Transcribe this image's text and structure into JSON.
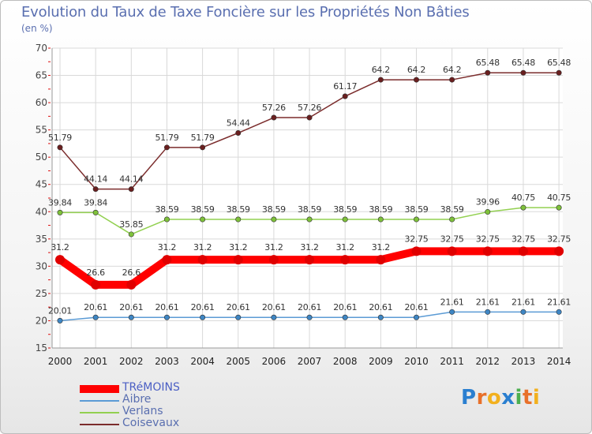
{
  "chart_data": {
    "type": "line",
    "title": "Evolution du Taux de Taxe Foncière sur les Propriétés Non Bâties",
    "subtitle": "(en %)",
    "xlabel": "",
    "ylabel": "",
    "ylim": [
      15,
      70
    ],
    "yticks": [
      15,
      20,
      25,
      30,
      35,
      40,
      45,
      50,
      55,
      60,
      65,
      70
    ],
    "grid": true,
    "legend_position": "bottom-left",
    "x": [
      "2000",
      "2001",
      "2002",
      "2003",
      "2004",
      "2005",
      "2006",
      "2007",
      "2008",
      "2009",
      "2010",
      "2011",
      "2012",
      "2013",
      "2014"
    ],
    "series": [
      {
        "name": "TRéMOINS",
        "color": "#ff0000",
        "dot_color": "#e00000",
        "emphasis": true,
        "values": [
          31.2,
          26.6,
          26.6,
          31.2,
          31.2,
          31.2,
          31.2,
          31.2,
          31.2,
          31.2,
          32.75,
          32.75,
          32.75,
          32.75,
          32.75
        ],
        "labels": [
          "31.2",
          "26.6",
          "26.6",
          "31.2",
          "31.2",
          "31.2",
          "31.2",
          "31.2",
          "31.2",
          "31.2",
          "32.75",
          "32.75",
          "32.75",
          "32.75",
          "32.75"
        ]
      },
      {
        "name": "Aibre",
        "color": "#5b9bd5",
        "dot_color": "#3e86c4",
        "emphasis": false,
        "values": [
          20.01,
          20.61,
          20.61,
          20.61,
          20.61,
          20.61,
          20.61,
          20.61,
          20.61,
          20.61,
          20.61,
          21.61,
          21.61,
          21.61,
          21.61
        ],
        "labels": [
          "20.01",
          "20.61",
          "20.61",
          "20.61",
          "20.61",
          "20.61",
          "20.61",
          "20.61",
          "20.61",
          "20.61",
          "20.61",
          "21.61",
          "21.61",
          "21.61",
          "21.61"
        ]
      },
      {
        "name": "Verlans",
        "color": "#92d050",
        "dot_color": "#7ec13a",
        "emphasis": false,
        "values": [
          39.84,
          39.84,
          35.85,
          38.59,
          38.59,
          38.59,
          38.59,
          38.59,
          38.59,
          38.59,
          38.59,
          38.59,
          39.96,
          40.75,
          40.75
        ],
        "labels": [
          "39.84",
          "39.84",
          "35.85",
          "38.59",
          "38.59",
          "38.59",
          "38.59",
          "38.59",
          "38.59",
          "38.59",
          "38.59",
          "38.59",
          "39.96",
          "40.75",
          "40.75"
        ]
      },
      {
        "name": "Coisevaux",
        "color": "#7b2c2c",
        "dot_color": "#6a1f1f",
        "emphasis": false,
        "values": [
          51.79,
          44.14,
          44.14,
          51.79,
          51.79,
          54.44,
          57.26,
          57.26,
          61.17,
          64.2,
          64.2,
          64.2,
          65.48,
          65.48,
          65.48
        ],
        "labels": [
          "51.79",
          "44.14",
          "44.14",
          "51.79",
          "51.79",
          "54.44",
          "57.26",
          "57.26",
          "61.17",
          "64.2",
          "64.2",
          "64.2",
          "65.48",
          "65.48",
          "65.48"
        ]
      }
    ]
  },
  "logo": {
    "text": "Proxiti",
    "letter_colors": [
      "#2a7fd0",
      "#e8702a",
      "#f2b01e",
      "#2a7fd0",
      "#4caf50",
      "#e8702a",
      "#f2b01e"
    ]
  }
}
